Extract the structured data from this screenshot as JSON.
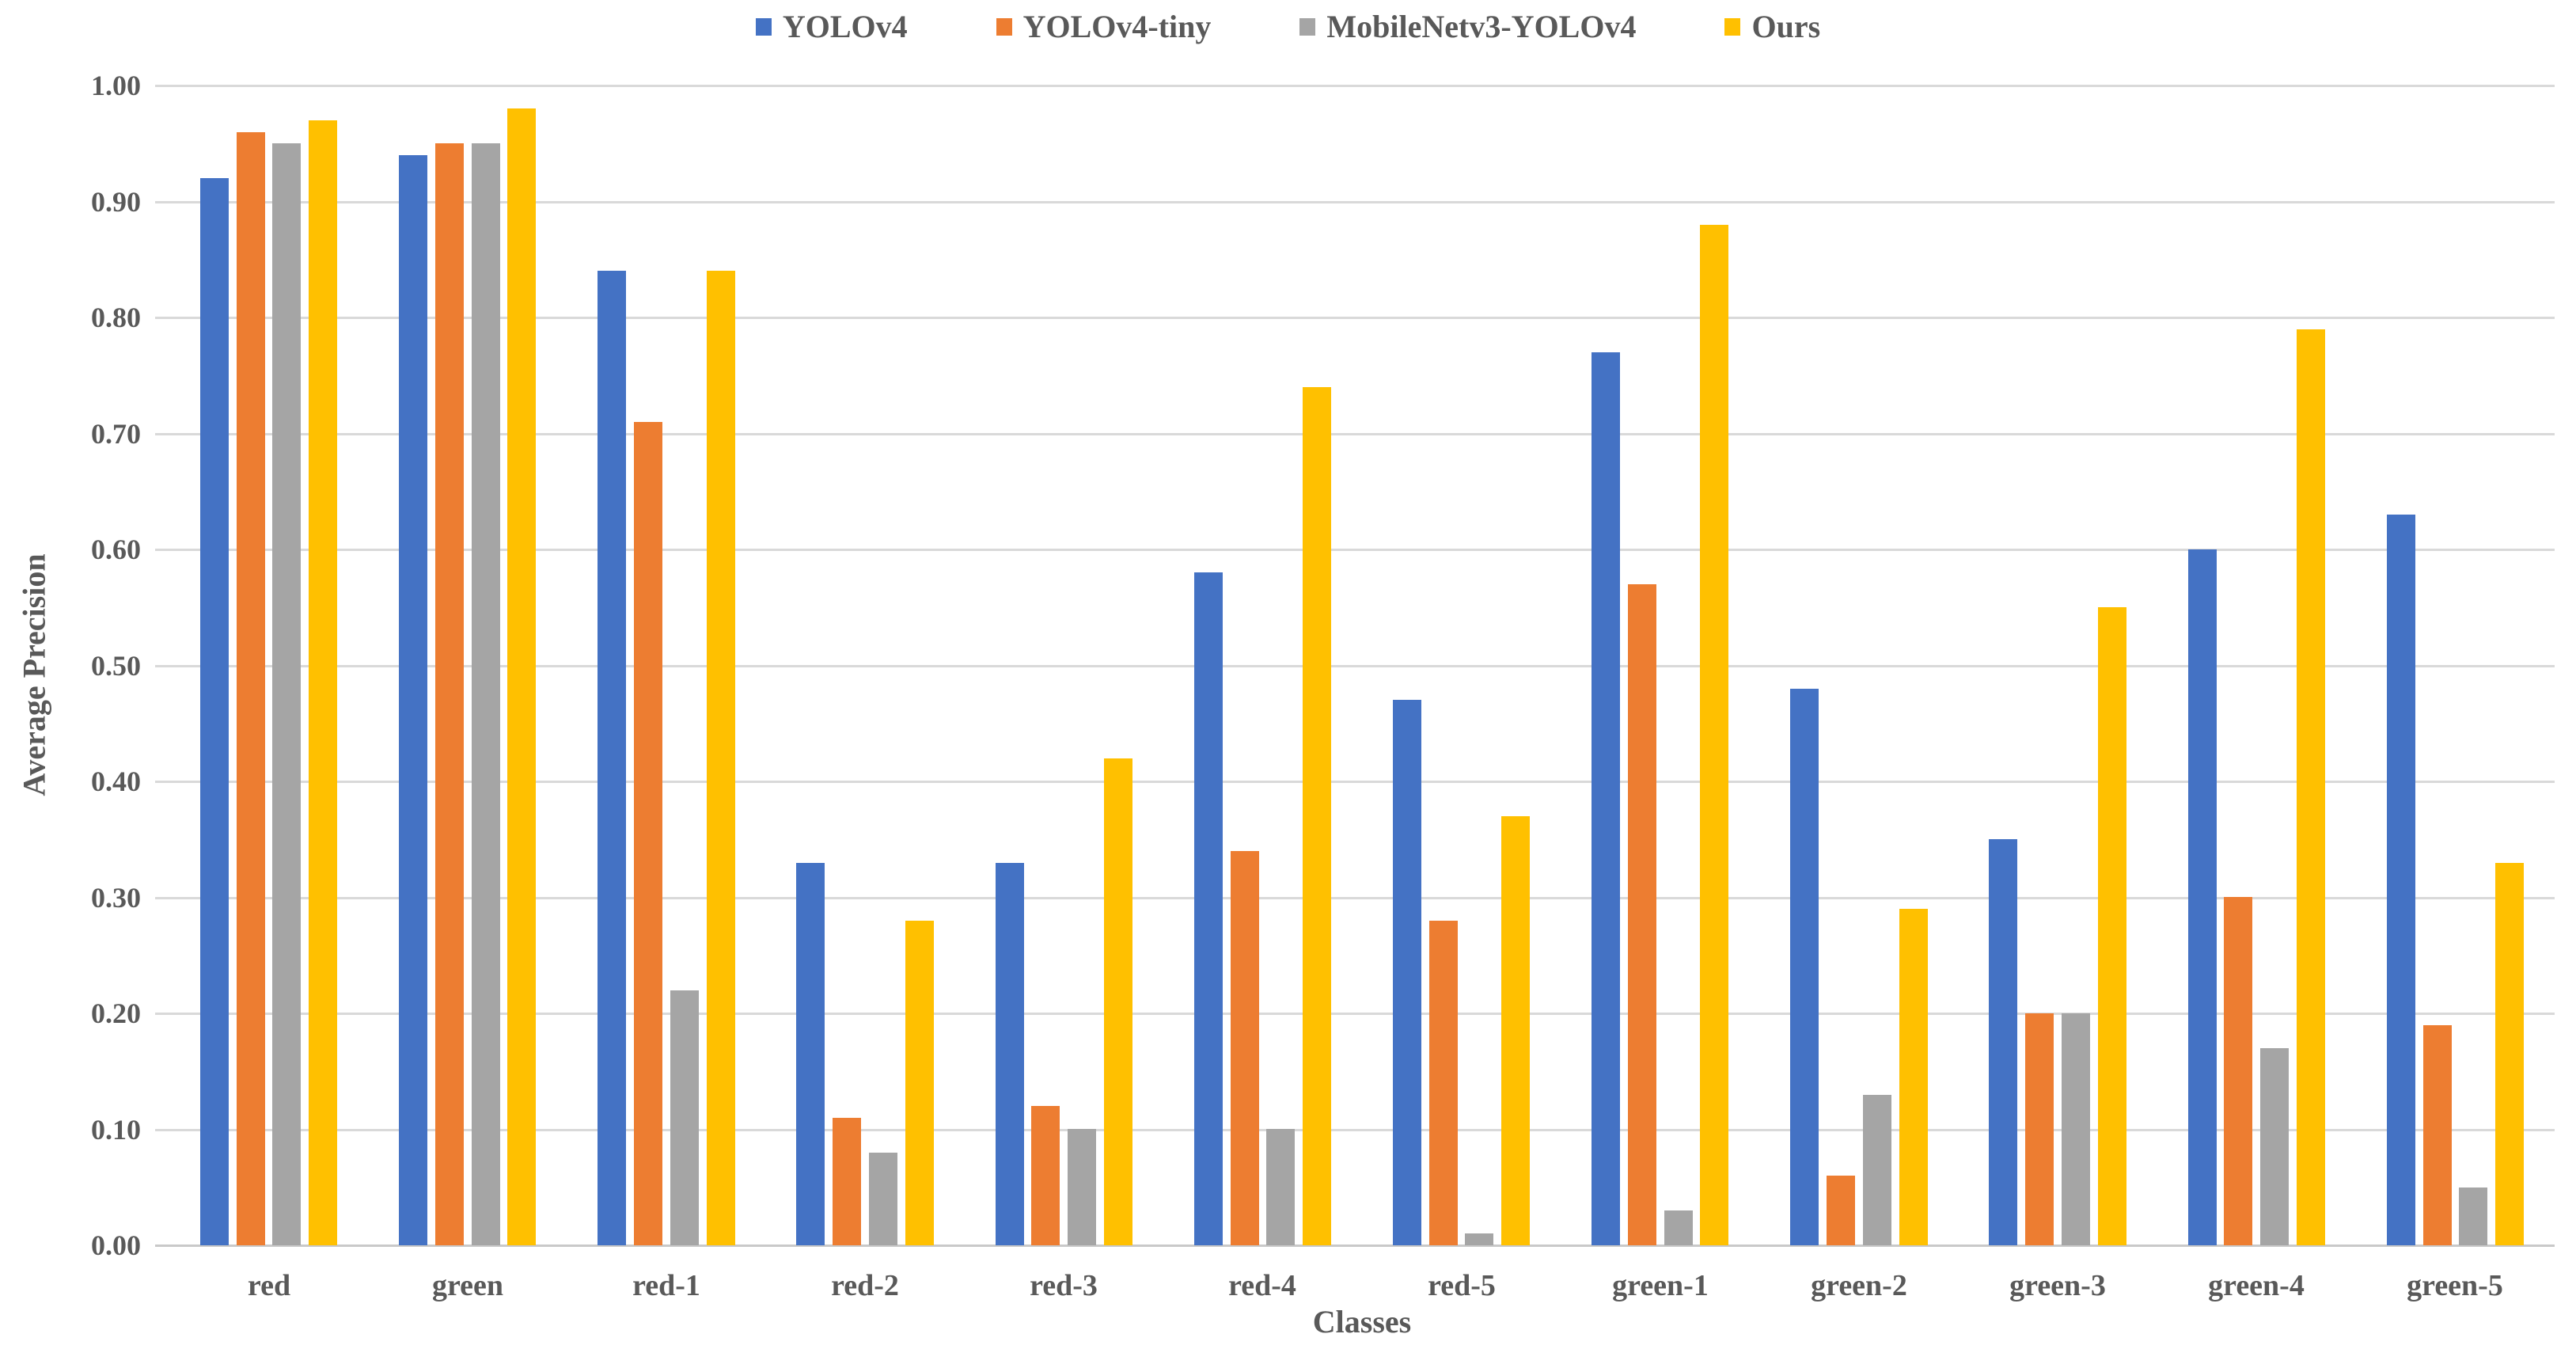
{
  "chart_data": {
    "type": "bar",
    "title": "",
    "xlabel": "Classes",
    "ylabel": "Average Precision",
    "categories": [
      "red",
      "green",
      "red-1",
      "red-2",
      "red-3",
      "red-4",
      "red-5",
      "green-1",
      "green-2",
      "green-3",
      "green-4",
      "green-5"
    ],
    "series": [
      {
        "name": "YOLOv4",
        "color": "#4472C4",
        "values": [
          0.92,
          0.94,
          0.84,
          0.33,
          0.33,
          0.58,
          0.47,
          0.77,
          0.48,
          0.35,
          0.6,
          0.63
        ]
      },
      {
        "name": "YOLOv4-tiny",
        "color": "#ED7D31",
        "values": [
          0.96,
          0.95,
          0.71,
          0.11,
          0.12,
          0.34,
          0.28,
          0.57,
          0.06,
          0.2,
          0.3,
          0.19
        ]
      },
      {
        "name": "MobileNetv3-YOLOv4",
        "color": "#A5A5A5",
        "values": [
          0.95,
          0.95,
          0.22,
          0.08,
          0.1,
          0.1,
          0.01,
          0.03,
          0.13,
          0.2,
          0.17,
          0.05
        ]
      },
      {
        "name": "Ours",
        "color": "#FFC000",
        "values": [
          0.97,
          0.98,
          0.84,
          0.28,
          0.42,
          0.74,
          0.37,
          0.88,
          0.29,
          0.55,
          0.79,
          0.33
        ]
      }
    ],
    "ylim": [
      0.0,
      1.0
    ],
    "ytick_step": 0.1,
    "ytick_labels": [
      "0.00",
      "0.10",
      "0.20",
      "0.30",
      "0.40",
      "0.50",
      "0.60",
      "0.70",
      "0.80",
      "0.90",
      "1.00"
    ],
    "grid": true,
    "legend_position": "top-center"
  },
  "style_colors": {
    "gridline": "#d9d9d9",
    "baseline": "#c9c9c9",
    "text": "#595959",
    "background": "#ffffff"
  }
}
